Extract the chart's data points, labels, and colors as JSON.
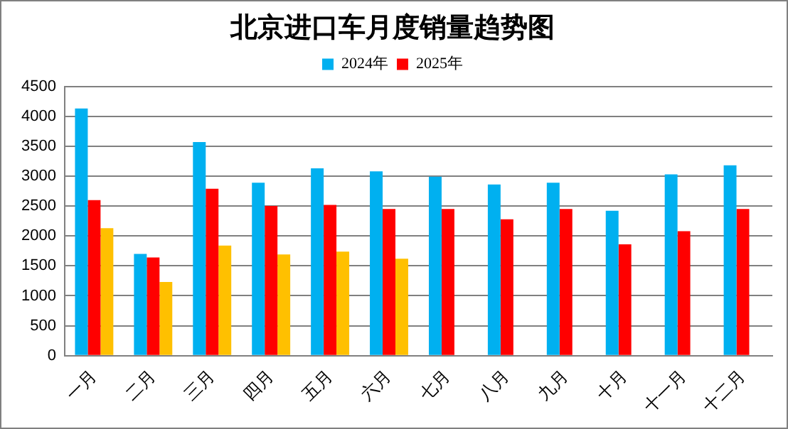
{
  "chart_data": {
    "type": "bar",
    "title": "北京进口车月度销量趋势图",
    "categories": [
      "一月",
      "二月",
      "三月",
      "四月",
      "五月",
      "六月",
      "七月",
      "八月",
      "九月",
      "十月",
      "十一月",
      "十二月"
    ],
    "series": [
      {
        "name": "2024年",
        "color": "#00b0f0",
        "values": [
          4130,
          1700,
          3570,
          2890,
          3130,
          3080,
          2990,
          2860,
          2890,
          2420,
          3030,
          3180
        ]
      },
      {
        "name": "2025年",
        "color": "#ff0000",
        "values": [
          2600,
          1640,
          2790,
          2500,
          2520,
          2450,
          2450,
          2280,
          2450,
          1860,
          2080,
          2450
        ]
      },
      {
        "color": "#ffc000",
        "values": [
          2130,
          1230,
          1840,
          1690,
          1740,
          1620,
          null,
          null,
          null,
          null,
          null,
          null
        ]
      }
    ],
    "ylim": [
      0,
      4500
    ],
    "yticks": [
      0,
      500,
      1000,
      1500,
      2000,
      2500,
      3000,
      3500,
      4000,
      4500
    ],
    "grid": "y",
    "legend": "top"
  }
}
